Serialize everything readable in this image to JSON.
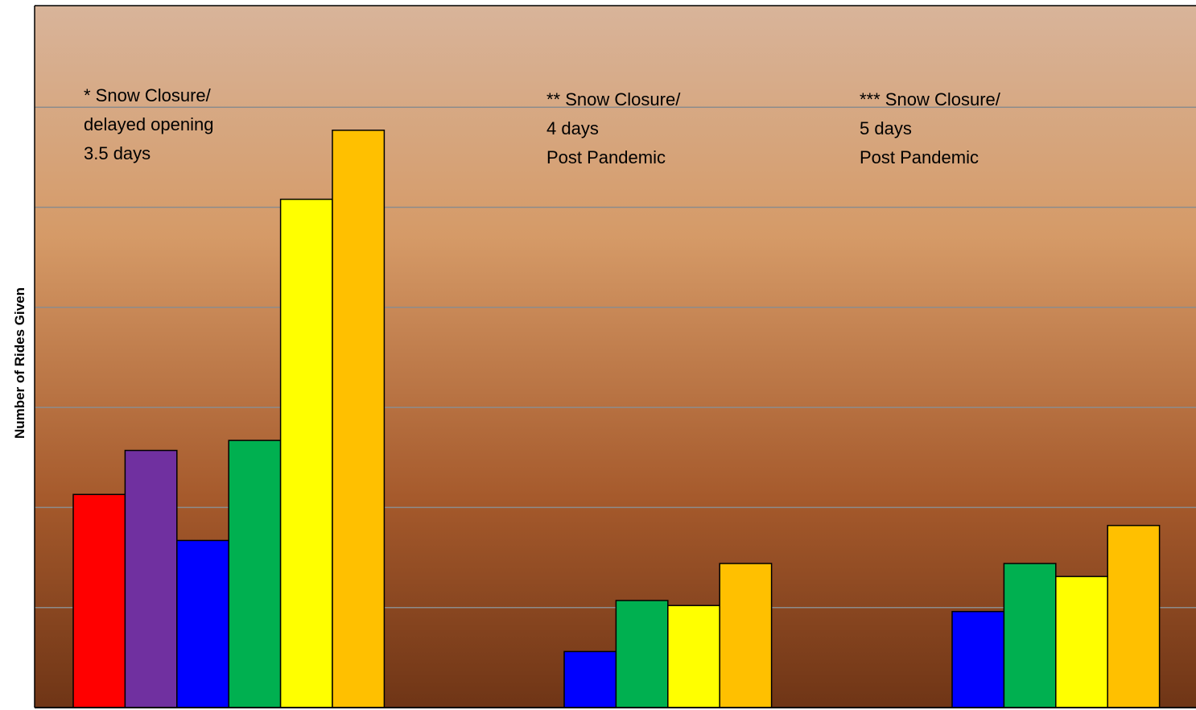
{
  "chart_data": {
    "type": "bar",
    "ylabel": "Number of Rides Given",
    "ylim": [
      0,
      7
    ],
    "grid": true,
    "background_gradient": [
      "#d8b49a",
      "#d59a67",
      "#a65a2c",
      "#6f3516"
    ],
    "groups": [
      {
        "bars": [
          {
            "color": "#ff0000",
            "value": 2.13
          },
          {
            "color": "#7030a0",
            "value": 2.57
          },
          {
            "color": "#0000ff",
            "value": 1.67
          },
          {
            "color": "#00b050",
            "value": 2.67
          },
          {
            "color": "#ffff00",
            "value": 5.08
          },
          {
            "color": "#ffc000",
            "value": 5.77
          }
        ],
        "annotation": [
          "* Snow Closure/",
          "delayed opening",
          "3.5 days"
        ]
      },
      {
        "bars": [
          {
            "color": "#0000ff",
            "value": 0.56
          },
          {
            "color": "#00b050",
            "value": 1.07
          },
          {
            "color": "#ffff00",
            "value": 1.02
          },
          {
            "color": "#ffc000",
            "value": 1.44
          }
        ],
        "annotation": [
          "** Snow Closure/",
          "4 days",
          "Post Pandemic"
        ]
      },
      {
        "bars": [
          {
            "color": "#0000ff",
            "value": 0.96
          },
          {
            "color": "#00b050",
            "value": 1.44
          },
          {
            "color": "#ffff00",
            "value": 1.31
          },
          {
            "color": "#ffc000",
            "value": 1.82
          }
        ],
        "annotation": [
          "*** Snow Closure/",
          "5 days",
          "Post Pandemic"
        ]
      }
    ]
  }
}
